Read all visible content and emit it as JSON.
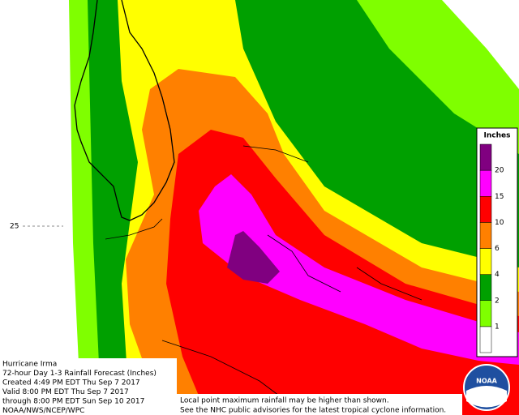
{
  "map": {
    "latitude_label": "25",
    "legend": {
      "title": "Inches",
      "levels": [
        1,
        2,
        4,
        6,
        10,
        15,
        20
      ],
      "colors": [
        "#ffffff",
        "#7fff00",
        "#00a000",
        "#ffff00",
        "#ff8000",
        "#ff0000",
        "#ff00ff",
        "#800080"
      ]
    },
    "info": [
      "Hurricane Irma",
      "72-hour Day 1-3 Rainfall Forecast (Inches)",
      "Created 4:49 PM EDT Thu Sep 7 2017",
      "Valid 8:00 PM EDT Thu Sep 7 2017",
      "through 8:00 PM EDT Sun Sep 10 2017",
      "NOAA/NWS/NCEP/WPC"
    ],
    "notes": [
      "Local point maximum rainfall may be higher than shown.",
      "See the NHC public advisories for the latest tropical cyclone information."
    ],
    "logo": "NOAA"
  }
}
